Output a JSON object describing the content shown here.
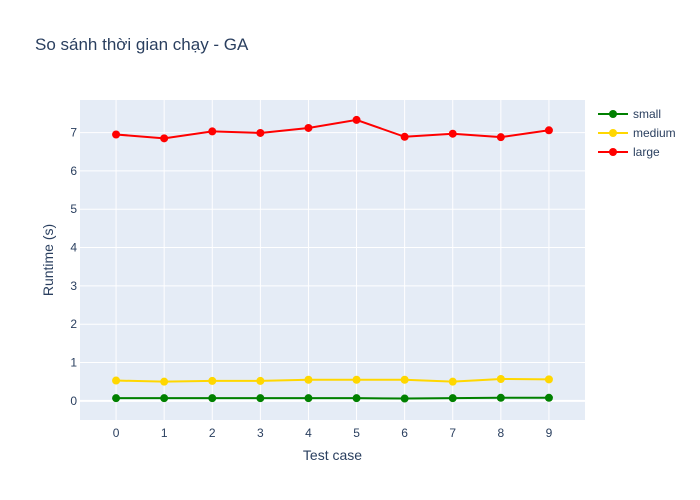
{
  "chart_data": {
    "type": "line",
    "title": "So sánh thời gian chạy - GA",
    "xlabel": "Test case",
    "ylabel": "Runtime (s)",
    "x": [
      0,
      1,
      2,
      3,
      4,
      5,
      6,
      7,
      8,
      9
    ],
    "xticks": [
      "0",
      "1",
      "2",
      "3",
      "4",
      "5",
      "6",
      "7",
      "8",
      "9"
    ],
    "yticks": [
      "0",
      "1",
      "2",
      "3",
      "4",
      "5",
      "6",
      "7"
    ],
    "xlim": [
      -0.75,
      9.75
    ],
    "ylim": [
      -0.5,
      7.85
    ],
    "grid": true,
    "legend_position": "top-right",
    "plot_background": "#e5ecf6",
    "series": [
      {
        "name": "small",
        "color": "#008000",
        "values": [
          0.07,
          0.07,
          0.07,
          0.07,
          0.07,
          0.07,
          0.06,
          0.07,
          0.08,
          0.08
        ]
      },
      {
        "name": "medium",
        "color": "#ffd700",
        "values": [
          0.53,
          0.5,
          0.52,
          0.52,
          0.55,
          0.55,
          0.55,
          0.5,
          0.57,
          0.56
        ]
      },
      {
        "name": "large",
        "color": "#ff0000",
        "values": [
          6.95,
          6.85,
          7.03,
          6.99,
          7.12,
          7.33,
          6.89,
          6.97,
          6.88,
          7.06
        ]
      }
    ]
  }
}
